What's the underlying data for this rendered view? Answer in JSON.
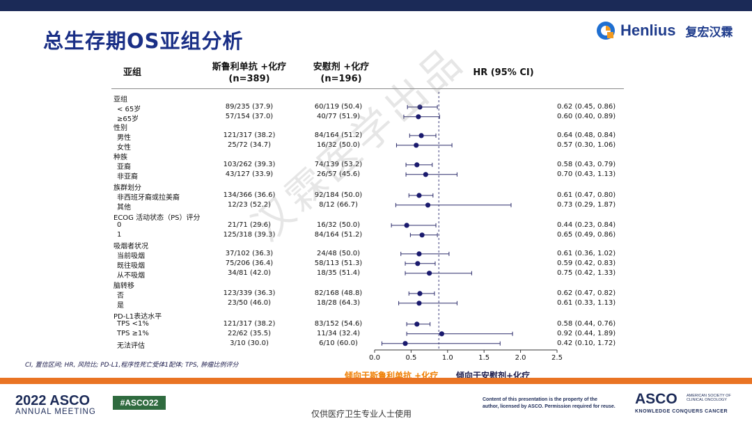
{
  "header": {
    "title": "总生存期OS亚组分析",
    "logo_en": "Henlius",
    "logo_cn": "复宏汉霖"
  },
  "columns": {
    "subgroup": "亚组",
    "serp_line1": "斯鲁利单抗 +化疗",
    "serp_line2": "(n=389)",
    "ate_line1": "安慰剂 +化疗",
    "ate_line2": "(n=196)",
    "hr": "HR (95% CI)"
  },
  "chart_data": {
    "type": "forest",
    "reference_line": 0.88,
    "xlim": [
      0,
      2.5
    ],
    "xticks": [
      "0.0",
      "0.5",
      "1.0",
      "1.5",
      "2.0",
      "2.5"
    ],
    "favors_left": "倾向于斯鲁利单抗 +化疗",
    "favors_right": "倾向于安慰剂+化疗",
    "groups": [
      {
        "title": "亚组",
        "rows": [
          {
            "label": "< 65岁",
            "serp": "89/235 (37.9)",
            "ate": "60/119 (50.4)",
            "hr": 0.62,
            "lo": 0.45,
            "hi": 0.86,
            "hr_text": "0.62 (0.45, 0.86)"
          },
          {
            "label": "≥65岁",
            "serp": "57/154 (37.0)",
            "ate": "40/77 (51.9)",
            "hr": 0.6,
            "lo": 0.4,
            "hi": 0.89,
            "hr_text": "0.60 (0.40, 0.89)"
          }
        ]
      },
      {
        "title": "性别",
        "rows": [
          {
            "label": "男性",
            "serp": "121/317 (38.2)",
            "ate": "84/164 (51.2)",
            "hr": 0.64,
            "lo": 0.48,
            "hi": 0.84,
            "hr_text": "0.64 (0.48, 0.84)"
          },
          {
            "label": "女性",
            "serp": "25/72 (34.7)",
            "ate": "16/32 (50.0)",
            "hr": 0.57,
            "lo": 0.3,
            "hi": 1.06,
            "hr_text": "0.57 (0.30, 1.06)"
          }
        ]
      },
      {
        "title": "种族",
        "rows": [
          {
            "label": "亚裔",
            "serp": "103/262 (39.3)",
            "ate": "74/139 (53.2)",
            "hr": 0.58,
            "lo": 0.43,
            "hi": 0.79,
            "hr_text": "0.58 (0.43, 0.79)"
          },
          {
            "label": "非亚裔",
            "serp": "43/127 (33.9)",
            "ate": "26/57 (45.6)",
            "hr": 0.7,
            "lo": 0.43,
            "hi": 1.13,
            "hr_text": "0.70 (0.43, 1.13)"
          }
        ]
      },
      {
        "title": "族群划分",
        "rows": [
          {
            "label": "非西班牙裔或拉美裔",
            "serp": "134/366 (36.6)",
            "ate": "92/184 (50.0)",
            "hr": 0.61,
            "lo": 0.47,
            "hi": 0.8,
            "hr_text": "0.61 (0.47, 0.80)"
          },
          {
            "label": "其他",
            "serp": "12/23 (52.2)",
            "ate": "8/12 (66.7)",
            "hr": 0.73,
            "lo": 0.29,
            "hi": 1.87,
            "hr_text": "0.73 (0.29, 1.87)"
          }
        ]
      },
      {
        "title": "ECOG 活动状态（PS）评分",
        "rows": [
          {
            "label": "0",
            "serp": "21/71 (29.6)",
            "ate": "16/32 (50.0)",
            "hr": 0.44,
            "lo": 0.23,
            "hi": 0.84,
            "hr_text": "0.44 (0.23, 0.84)"
          },
          {
            "label": "1",
            "serp": "125/318 (39.3)",
            "ate": "84/164 (51.2)",
            "hr": 0.65,
            "lo": 0.49,
            "hi": 0.86,
            "hr_text": "0.65 (0.49, 0.86)"
          }
        ]
      },
      {
        "title": "吸烟者状况",
        "rows": [
          {
            "label": "当前吸烟",
            "serp": "37/102 (36.3)",
            "ate": "24/48 (50.0)",
            "hr": 0.61,
            "lo": 0.36,
            "hi": 1.02,
            "hr_text": "0.61 (0.36, 1.02)"
          },
          {
            "label": "既往吸烟",
            "serp": "75/206 (36.4)",
            "ate": "58/113 (51.3)",
            "hr": 0.59,
            "lo": 0.42,
            "hi": 0.83,
            "hr_text": "0.59 (0.42, 0.83)"
          },
          {
            "label": "从不吸烟",
            "serp": "34/81 (42.0)",
            "ate": "18/35 (51.4)",
            "hr": 0.75,
            "lo": 0.42,
            "hi": 1.33,
            "hr_text": "0.75 (0.42, 1.33)"
          }
        ]
      },
      {
        "title": "脑转移",
        "rows": [
          {
            "label": "否",
            "serp": "123/339 (36.3)",
            "ate": "82/168 (48.8)",
            "hr": 0.62,
            "lo": 0.47,
            "hi": 0.82,
            "hr_text": "0.62 (0.47, 0.82)"
          },
          {
            "label": "是",
            "serp": "23/50 (46.0)",
            "ate": "18/28 (64.3)",
            "hr": 0.61,
            "lo": 0.33,
            "hi": 1.13,
            "hr_text": "0.61 (0.33, 1.13)"
          }
        ]
      },
      {
        "title": "PD-L1表达水平",
        "rows": [
          {
            "label": "TPS <1%",
            "serp": "121/317 (38.2)",
            "ate": "83/152 (54.6)",
            "hr": 0.58,
            "lo": 0.44,
            "hi": 0.76,
            "hr_text": "0.58 (0.44, 0.76)"
          },
          {
            "label": "TPS ≥1%",
            "serp": "22/62 (35.5)",
            "ate": "11/34 (32.4)",
            "hr": 0.92,
            "lo": 0.44,
            "hi": 1.89,
            "hr_text": "0.92 (0.44, 1.89)"
          },
          {
            "label": "无法评估",
            "serp": "3/10 (30.0)",
            "ate": "6/10 (60.0)",
            "hr": 0.42,
            "lo": 0.1,
            "hi": 1.72,
            "hr_text": "0.42 (0.10, 1.72)"
          }
        ]
      }
    ]
  },
  "footnote": "CI, 置信区间; HR, 风险比; PD-L1,程序性死亡受体1配体; TPS, 肿瘤比例评分",
  "watermark": "汉霖医学出品",
  "footer": {
    "asco_year": "2022 ASCO",
    "asco_meeting": "ANNUAL MEETING",
    "hashtag": "#ASCO22",
    "usage": "仅供医疗卫生专业人士使用",
    "copyright_line1": "Content of this presentation is the property of the",
    "copyright_line2": "author, licensed by ASCO. Permission required for reuse.",
    "asco2": "ASCO",
    "society_line1": "AMERICAN SOCIETY OF",
    "society_line2": "CLINICAL ONCOLOGY",
    "tagline": "KNOWLEDGE CONQUERS CANCER"
  },
  "colors": {
    "title": "#1a2f86",
    "dot": "#1a1a6e",
    "orange": "#ef7d00",
    "navy": "#1b2a57"
  }
}
